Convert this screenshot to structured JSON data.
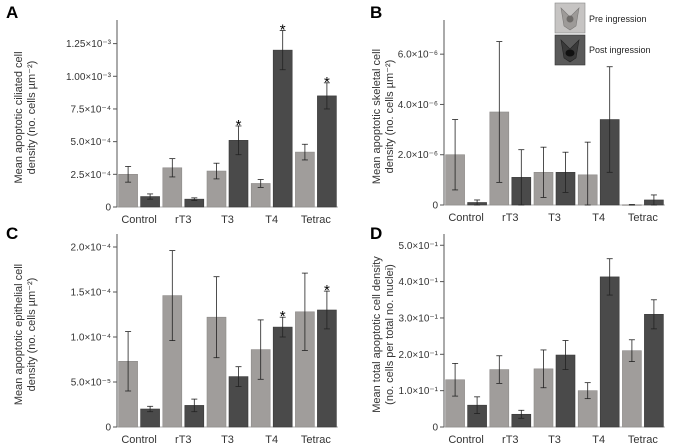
{
  "colors": {
    "pre": "#a09d9b",
    "post": "#4a4a4a",
    "axis": "#555555"
  },
  "legend": {
    "pre_label": "Pre ingression",
    "post_label": "Post ingression"
  },
  "chart_data": [
    {
      "panel": "A",
      "type": "bar",
      "ylabel_lines": [
        "Mean apoptotic ciliated cell",
        "density (no. cells µm⁻²)"
      ],
      "categories": [
        "Control",
        "rT3",
        "T3",
        "T4",
        "Tetrac"
      ],
      "ylim": [
        0,
        0.0014
      ],
      "yticks": [
        0,
        0.00025,
        0.0005,
        0.00075,
        0.001,
        0.00125
      ],
      "ytick_labels": [
        "0",
        "2.5×10⁻⁴",
        "5.0×10⁻⁴",
        "7.5×10⁻⁴",
        "1.00×10⁻³",
        "1.25×10⁻³"
      ],
      "series": [
        {
          "key": "pre",
          "values": [
            0.00025,
            0.0003,
            0.000275,
            0.00018,
            0.00042
          ],
          "errors": [
            6e-05,
            7e-05,
            6e-05,
            3e-05,
            6e-05
          ]
        },
        {
          "key": "post",
          "values": [
            8e-05,
            6e-05,
            0.00051,
            0.0012,
            0.00085
          ],
          "errors": [
            2e-05,
            1e-05,
            0.00011,
            0.00015,
            0.0001
          ]
        }
      ],
      "significance": [
        {
          "category": "T3",
          "series": "post",
          "label": "*"
        },
        {
          "category": "T4",
          "series": "post",
          "label": "*"
        },
        {
          "category": "Tetrac",
          "series": "post",
          "label": "*"
        }
      ]
    },
    {
      "panel": "B",
      "type": "bar",
      "ylabel_lines": [
        "Mean apoptotic skeletal cell",
        "density (no. cells µm⁻²)"
      ],
      "categories": [
        "Control",
        "rT3",
        "T3",
        "T4",
        "Tetrac"
      ],
      "ylim": [
        0,
        7.2e-06
      ],
      "yticks": [
        0,
        2e-06,
        4e-06,
        6e-06
      ],
      "ytick_labels": [
        "0",
        "2.0×10⁻⁶",
        "4.0×10⁻⁶",
        "6.0×10⁻⁶"
      ],
      "series": [
        {
          "key": "pre",
          "values": [
            2e-06,
            3.7e-06,
            1.3e-06,
            1.2e-06,
            1e-08
          ],
          "errors": [
            1.4e-06,
            2.8e-06,
            1e-06,
            1.3e-06,
            1e-08
          ]
        },
        {
          "key": "post",
          "values": [
            1e-07,
            1.1e-06,
            1.3e-06,
            3.4e-06,
            2e-07
          ],
          "errors": [
            1e-07,
            1.1e-06,
            8e-07,
            2.1e-06,
            2e-07
          ]
        }
      ],
      "significance": []
    },
    {
      "panel": "C",
      "type": "bar",
      "ylabel_lines": [
        "Mean apoptotic epithelial cell",
        "density (no. cells µm⁻²)"
      ],
      "categories": [
        "Control",
        "rT3",
        "T3",
        "T4",
        "Tetrac"
      ],
      "ylim": [
        0,
        0.00021
      ],
      "yticks": [
        0,
        5e-05,
        0.0001,
        0.00015,
        0.0002
      ],
      "ytick_labels": [
        "0",
        "5.0×10⁻⁵",
        "1.0×10⁻⁴",
        "1.5×10⁻⁴",
        "2.0×10⁻⁴"
      ],
      "series": [
        {
          "key": "pre",
          "values": [
            7.3e-05,
            0.000146,
            0.000122,
            8.6e-05,
            0.000128
          ],
          "errors": [
            3.3e-05,
            5e-05,
            4.5e-05,
            3.3e-05,
            4.3e-05
          ]
        },
        {
          "key": "post",
          "values": [
            2e-05,
            2.4e-05,
            5.6e-05,
            0.000111,
            0.00013
          ],
          "errors": [
            3e-06,
            7e-06,
            1.1e-05,
            1.1e-05,
            2.1e-05
          ]
        }
      ],
      "significance": [
        {
          "category": "T4",
          "series": "post",
          "label": "*"
        },
        {
          "category": "Tetrac",
          "series": "post",
          "label": "*"
        }
      ]
    },
    {
      "panel": "D",
      "type": "bar",
      "ylabel_lines": [
        "Mean total apoptotic cell density",
        "(no. cells per total no. nuclei)"
      ],
      "categories": [
        "Control",
        "rT3",
        "T3",
        "T4",
        "Tetrac"
      ],
      "ylim": [
        0,
        0.52
      ],
      "yticks": [
        0,
        0.1,
        0.2,
        0.3,
        0.4,
        0.5
      ],
      "ytick_labels": [
        "0",
        "1.0×10⁻¹",
        "2.0×10⁻¹",
        "3.0×10⁻¹",
        "4.0×10⁻¹",
        "5.0×10⁻¹"
      ],
      "series": [
        {
          "key": "pre",
          "values": [
            0.13,
            0.158,
            0.16,
            0.1,
            0.21
          ],
          "errors": [
            0.045,
            0.038,
            0.052,
            0.022,
            0.03
          ]
        },
        {
          "key": "post",
          "values": [
            0.06,
            0.035,
            0.198,
            0.413,
            0.31
          ],
          "errors": [
            0.023,
            0.011,
            0.04,
            0.05,
            0.04
          ]
        }
      ],
      "significance": []
    }
  ]
}
